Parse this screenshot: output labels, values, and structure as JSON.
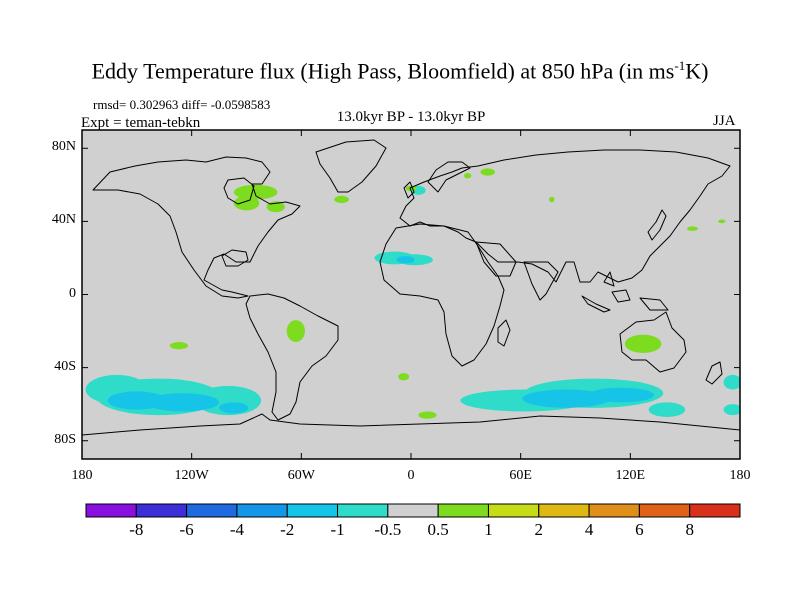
{
  "title": {
    "main": "Eddy Temperature flux (High Pass, Bloomfield) at 850 hPa (in ms",
    "sup": "-1",
    "tail": "K)"
  },
  "stats": "rmsd= 0.302963 diff= -0.0598583",
  "expt": "Expt = teman-tebkn",
  "period": "13.0kyr BP - 13.0kyr BP",
  "season": "JJA",
  "map": {
    "projection": "cylindrical-equidistant",
    "lon_range": [
      -180,
      180
    ],
    "lat_range": [
      -90,
      90
    ],
    "background_color": "#d0d0d0",
    "coastline_color": "#000000"
  },
  "y_ticks": [
    {
      "lat": 80,
      "label": "80N"
    },
    {
      "lat": 40,
      "label": "40N"
    },
    {
      "lat": 0,
      "label": "0"
    },
    {
      "lat": -40,
      "label": "40S"
    },
    {
      "lat": -80,
      "label": "80S"
    }
  ],
  "x_ticks": [
    {
      "lon": -180,
      "label": "180"
    },
    {
      "lon": -120,
      "label": "120W"
    },
    {
      "lon": -60,
      "label": "60W"
    },
    {
      "lon": 0,
      "label": "0"
    },
    {
      "lon": 60,
      "label": "60E"
    },
    {
      "lon": 120,
      "label": "120E"
    },
    {
      "lon": 180,
      "label": "180"
    }
  ],
  "colorbar": {
    "colors": [
      "#8a10e0",
      "#3c2fd8",
      "#1f6ae0",
      "#1597e8",
      "#16c4e8",
      "#2edcc9",
      "#d0d0d0",
      "#7ddc1f",
      "#c6dc16",
      "#e0b814",
      "#e0901a",
      "#e0621a",
      "#d8301a"
    ],
    "labels": [
      "-8",
      "-6",
      "-4",
      "-2",
      "-1",
      "-0.5",
      "0.5",
      "1",
      "2",
      "4",
      "6",
      "8"
    ]
  },
  "anomalies": [
    {
      "lon": -161,
      "lat": -52,
      "rlon": 17,
      "rlat": 8,
      "color": "#2edcc9"
    },
    {
      "lon": -138,
      "lat": -56,
      "rlon": 34,
      "rlat": 10,
      "color": "#2edcc9"
    },
    {
      "lon": -100,
      "lat": -58,
      "rlon": 18,
      "rlat": 8,
      "color": "#2edcc9"
    },
    {
      "lon": -150,
      "lat": -58,
      "rlon": 16,
      "rlat": 5,
      "color": "#16c4e8"
    },
    {
      "lon": -125,
      "lat": -59,
      "rlon": 20,
      "rlat": 5,
      "color": "#16c4e8"
    },
    {
      "lon": -97,
      "lat": -62,
      "rlon": 8,
      "rlat": 3,
      "color": "#16c4e8"
    },
    {
      "lon": 62,
      "lat": -58,
      "rlon": 35,
      "rlat": 6,
      "color": "#2edcc9"
    },
    {
      "lon": 100,
      "lat": -54,
      "rlon": 38,
      "rlat": 8,
      "color": "#2edcc9"
    },
    {
      "lon": 85,
      "lat": -57,
      "rlon": 24,
      "rlat": 5,
      "color": "#16c4e8"
    },
    {
      "lon": 115,
      "lat": -55,
      "rlon": 18,
      "rlat": 4,
      "color": "#16c4e8"
    },
    {
      "lon": 140,
      "lat": -63,
      "rlon": 10,
      "rlat": 4,
      "color": "#2edcc9"
    },
    {
      "lon": 176,
      "lat": -48,
      "rlon": 5,
      "rlat": 4,
      "color": "#2edcc9"
    },
    {
      "lon": 176,
      "lat": -63,
      "rlon": 5,
      "rlat": 3,
      "color": "#2edcc9"
    },
    {
      "lon": -9,
      "lat": 20,
      "rlon": 11,
      "rlat": 3.5,
      "color": "#2edcc9"
    },
    {
      "lon": 2,
      "lat": 19,
      "rlon": 10,
      "rlat": 3,
      "color": "#2edcc9"
    },
    {
      "lon": -3,
      "lat": 19,
      "rlon": 5,
      "rlat": 2,
      "color": "#16c4e8"
    },
    {
      "lon": 4,
      "lat": 57,
      "rlon": 4,
      "rlat": 2.5,
      "color": "#2edcc9"
    },
    {
      "lon": -85,
      "lat": 56,
      "rlon": 12,
      "rlat": 4,
      "color": "#7ddc1f"
    },
    {
      "lon": -90,
      "lat": 50,
      "rlon": 7,
      "rlat": 4,
      "color": "#7ddc1f"
    },
    {
      "lon": -74,
      "lat": 48,
      "rlon": 5,
      "rlat": 3,
      "color": "#7ddc1f"
    },
    {
      "lon": -38,
      "lat": 52,
      "rlon": 4,
      "rlat": 2,
      "color": "#7ddc1f"
    },
    {
      "lon": 0,
      "lat": 58,
      "rlon": 3,
      "rlat": 1.5,
      "color": "#7ddc1f"
    },
    {
      "lon": 42,
      "lat": 67,
      "rlon": 4,
      "rlat": 2,
      "color": "#7ddc1f"
    },
    {
      "lon": 31,
      "lat": 65,
      "rlon": 2,
      "rlat": 1.5,
      "color": "#7ddc1f"
    },
    {
      "lon": 77,
      "lat": 52,
      "rlon": 1.5,
      "rlat": 1.5,
      "color": "#7ddc1f"
    },
    {
      "lon": 154,
      "lat": 36,
      "rlon": 3,
      "rlat": 1.2,
      "color": "#7ddc1f"
    },
    {
      "lon": 170,
      "lat": 40,
      "rlon": 2,
      "rlat": 1,
      "color": "#7ddc1f"
    },
    {
      "lon": -63,
      "lat": -20,
      "rlon": 5,
      "rlat": 6,
      "color": "#7ddc1f"
    },
    {
      "lon": -127,
      "lat": -28,
      "rlon": 5,
      "rlat": 2,
      "color": "#7ddc1f"
    },
    {
      "lon": -4,
      "lat": -45,
      "rlon": 3,
      "rlat": 2,
      "color": "#7ddc1f"
    },
    {
      "lon": 9,
      "lat": -66,
      "rlon": 5,
      "rlat": 2,
      "color": "#7ddc1f"
    },
    {
      "lon": 127,
      "lat": -27,
      "rlon": 10,
      "rlat": 5,
      "color": "#7ddc1f"
    }
  ]
}
